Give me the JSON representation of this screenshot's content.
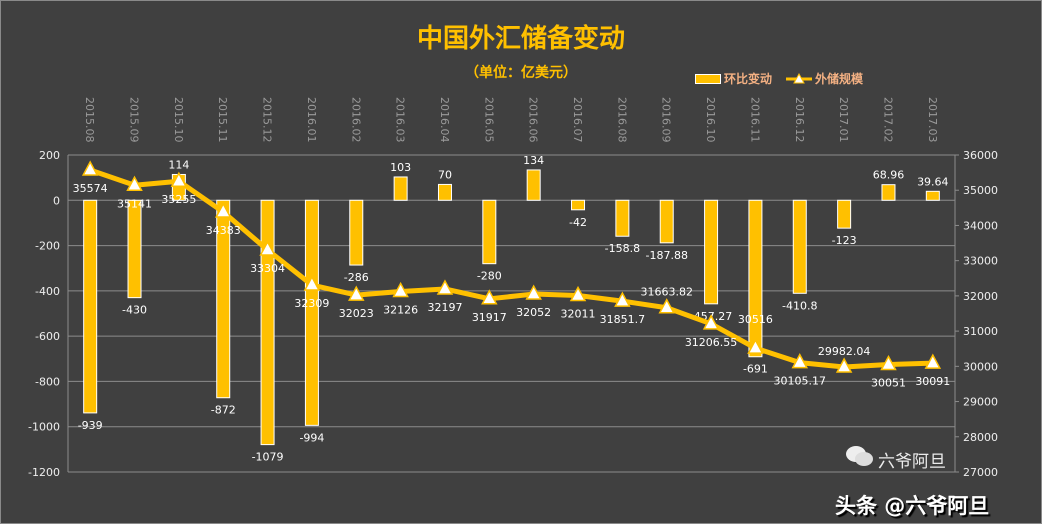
{
  "chart_data": {
    "type": "bar+line",
    "title": "中国外汇储备变动",
    "subtitle": "（单位：亿美元）",
    "legend_position": "top-right",
    "grid": true,
    "categories": [
      "2015.08",
      "2015.09",
      "2015.10",
      "2015.11",
      "2015.12",
      "2016.01",
      "2016.02",
      "2016.03",
      "2016.04",
      "2016.05",
      "2016.06",
      "2016.07",
      "2016.08",
      "2016.09",
      "2016.10",
      "2016.11",
      "2016.12",
      "2017.01",
      "2017.02",
      "2017.03"
    ],
    "series": [
      {
        "name": "环比变动",
        "type": "bar",
        "axis": "left",
        "values": [
          -939,
          -430,
          114,
          -872,
          -1079,
          -994,
          -286,
          103,
          70,
          -280,
          134,
          -42,
          -158.8,
          -187.88,
          -457.27,
          -691,
          -410.8,
          -123,
          68.96,
          39.64
        ],
        "labels": [
          "-939",
          "-430",
          "114",
          "-872",
          "-1079",
          "-994",
          "-286",
          "103",
          "70",
          "-280",
          "134",
          "-42",
          "-158.8",
          "-187.88",
          "-457.27",
          "-691",
          "-410.8",
          "-123",
          "68.96",
          "39.64"
        ]
      },
      {
        "name": "外储规模",
        "type": "line",
        "axis": "right",
        "values": [
          35574,
          35141,
          35255,
          34383,
          33304,
          32309,
          32023,
          32126,
          32197,
          31917,
          32052,
          32011,
          31851.7,
          31663.82,
          31206.55,
          30516,
          30105.17,
          29982.04,
          30051,
          30091
        ],
        "labels": [
          "35574",
          "35141",
          "35255",
          "34383",
          "33304",
          "32309",
          "32023",
          "32126",
          "32197",
          "31917",
          "32052",
          "32011",
          "31851.7",
          "31663.82",
          "31206.55",
          "30516",
          "30105.17",
          "29982.04",
          "30051",
          "30091"
        ]
      }
    ],
    "y_left": {
      "range": [
        -1200,
        200
      ],
      "ticks": [
        "200",
        "0",
        "-200",
        "-400",
        "-600",
        "-800",
        "-1000",
        "-1200"
      ]
    },
    "y_right": {
      "range": [
        27000,
        36000
      ],
      "ticks": [
        "36000",
        "35000",
        "34000",
        "33000",
        "32000",
        "31000",
        "30000",
        "29000",
        "28000",
        "27000"
      ]
    },
    "colors": {
      "bar": "#FFC000",
      "line": "#FFC000",
      "marker": "#FFFFFF",
      "background": "#404040",
      "grid": "#8C8C8C"
    }
  },
  "watermark": {
    "text": "头条 @六爷阿旦",
    "wechat_text": "六爷阿旦"
  }
}
